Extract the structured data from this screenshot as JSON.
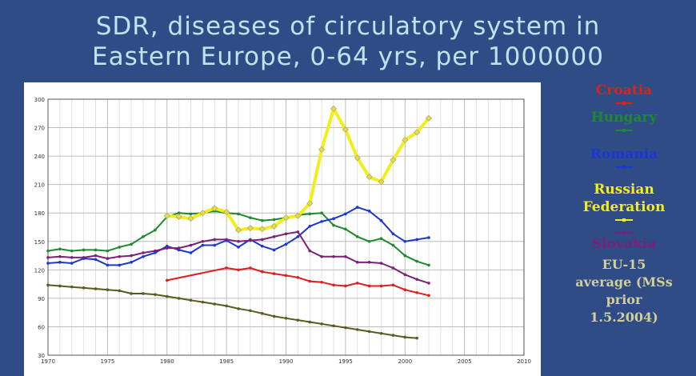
{
  "slide": {
    "title_line1": "SDR, diseases of circulatory system in",
    "title_line2": "Eastern Europe, 0-64 yrs, per 1000000"
  },
  "legend": {
    "croatia": "Croatia",
    "hungary": "Hungary",
    "romania": "Romania",
    "russia_line1": "Russian",
    "russia_line2": "Federation",
    "slovakia": "Slovakia",
    "eu_line1": "EU-15",
    "eu_line2": "average (MSs",
    "eu_line3": "prior",
    "eu_line4": "1.5.2004)"
  },
  "chart_data": {
    "type": "line",
    "title": "SDR, diseases of circulatory system in Eastern Europe, 0-64 yrs, per 1000000",
    "xlabel": "",
    "ylabel": "",
    "xlim": [
      1970,
      2010
    ],
    "ylim": [
      30,
      300
    ],
    "xticks": [
      1970,
      1975,
      1980,
      1985,
      1990,
      1995,
      2000,
      2005,
      2010
    ],
    "yticks": [
      30,
      60,
      90,
      120,
      150,
      180,
      210,
      240,
      270,
      300
    ],
    "grid": true,
    "legend_position": "right",
    "series": [
      {
        "name": "Croatia",
        "color": "#e01e1e",
        "x": [
          1980,
          1985,
          1986,
          1987,
          1988,
          1989,
          1990,
          1991,
          1992,
          1993,
          1994,
          1995,
          1996,
          1997,
          1998,
          1999,
          2000,
          2001,
          2002
        ],
        "y": [
          109,
          122,
          120,
          122,
          118,
          116,
          114,
          112,
          108,
          107,
          104,
          103,
          106,
          103,
          103,
          104,
          99,
          96,
          93
        ]
      },
      {
        "name": "Hungary",
        "color": "#1d8a2c",
        "x": [
          1970,
          1971,
          1972,
          1973,
          1974,
          1975,
          1976,
          1977,
          1978,
          1979,
          1980,
          1981,
          1982,
          1983,
          1984,
          1985,
          1986,
          1987,
          1988,
          1989,
          1990,
          1991,
          1992,
          1993,
          1994,
          1995,
          1996,
          1997,
          1998,
          1999,
          2000,
          2001,
          2002
        ],
        "y": [
          140,
          142,
          140,
          141,
          141,
          140,
          144,
          147,
          155,
          162,
          176,
          180,
          179,
          180,
          182,
          180,
          179,
          175,
          172,
          173,
          175,
          178,
          179,
          180,
          167,
          163,
          155,
          150,
          153,
          146,
          135,
          129,
          125
        ]
      },
      {
        "name": "Romania",
        "color": "#1a38d0",
        "x": [
          1970,
          1971,
          1972,
          1973,
          1974,
          1975,
          1976,
          1977,
          1978,
          1979,
          1980,
          1981,
          1982,
          1983,
          1984,
          1985,
          1986,
          1987,
          1988,
          1989,
          1990,
          1991,
          1992,
          1993,
          1994,
          1995,
          1996,
          1997,
          1998,
          1999,
          2000,
          2001,
          2002
        ],
        "y": [
          127,
          128,
          127,
          132,
          131,
          125,
          125,
          128,
          134,
          138,
          145,
          141,
          138,
          146,
          146,
          151,
          144,
          152,
          145,
          141,
          147,
          155,
          166,
          171,
          174,
          179,
          186,
          182,
          172,
          158,
          150,
          152,
          154
        ]
      },
      {
        "name": "Russian Federation",
        "color": "#f2ee16",
        "x": [
          1980,
          1981,
          1982,
          1983,
          1984,
          1985,
          1986,
          1987,
          1988,
          1989,
          1990,
          1991,
          1992,
          1993,
          1994,
          1995,
          1996,
          1997,
          1998,
          1999,
          2000,
          2001,
          2002
        ],
        "y": [
          177,
          176,
          174,
          180,
          185,
          181,
          162,
          164,
          163,
          166,
          175,
          177,
          190,
          247,
          290,
          268,
          238,
          218,
          213,
          236,
          257,
          265,
          280
        ]
      },
      {
        "name": "Slovakia",
        "color": "#7b2079",
        "x": [
          1970,
          1971,
          1972,
          1973,
          1974,
          1975,
          1976,
          1977,
          1978,
          1979,
          1980,
          1981,
          1982,
          1983,
          1984,
          1985,
          1986,
          1987,
          1988,
          1989,
          1990,
          1991,
          1992,
          1993,
          1994,
          1995,
          1996,
          1997,
          1998,
          1999,
          2000,
          2001,
          2002
        ],
        "y": [
          133,
          134,
          133,
          133,
          135,
          132,
          134,
          135,
          138,
          140,
          143,
          143,
          146,
          150,
          152,
          152,
          150,
          151,
          152,
          155,
          158,
          160,
          140,
          134,
          134,
          134,
          128,
          128,
          127,
          122,
          115,
          110,
          106
        ]
      },
      {
        "name": "EU-15 average (MSs prior 1.5.2004)",
        "color": "#5c5a1e",
        "x": [
          1970,
          1971,
          1972,
          1973,
          1974,
          1975,
          1976,
          1977,
          1978,
          1979,
          1980,
          1981,
          1982,
          1983,
          1984,
          1985,
          1986,
          1987,
          1988,
          1989,
          1990,
          1991,
          1992,
          1993,
          1994,
          1995,
          1996,
          1997,
          1998,
          1999,
          2000,
          2001
        ],
        "y": [
          104,
          103,
          102,
          101,
          100,
          99,
          98,
          95,
          95,
          94,
          92,
          90,
          88,
          86,
          84,
          82,
          79,
          77,
          74,
          71,
          69,
          67,
          65,
          63,
          61,
          59,
          57,
          55,
          53,
          51,
          49,
          48
        ]
      }
    ]
  }
}
